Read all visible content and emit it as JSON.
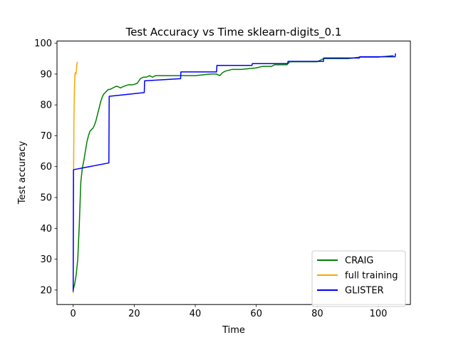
{
  "chart_data": {
    "type": "line",
    "title": "Test Accuracy vs Time sklearn-digits_0.1",
    "xlabel": "Time",
    "ylabel": "Test accuracy",
    "xlim": [
      -5.3,
      110.5
    ],
    "ylim": [
      15.3,
      100.7
    ],
    "xticks": [
      0,
      20,
      40,
      60,
      80,
      100
    ],
    "yticks": [
      20,
      30,
      40,
      50,
      60,
      70,
      80,
      90,
      100
    ],
    "grid": false,
    "legend_position": "lower-right",
    "series": [
      {
        "name": "CRAIG",
        "color": "#008000",
        "x": [
          0,
          0.5,
          1.0,
          1.5,
          2.0,
          2.5,
          3.0,
          3.5,
          4.0,
          4.5,
          5.0,
          5.5,
          6.0,
          6.5,
          7.0,
          7.5,
          8.0,
          8.5,
          9.0,
          9.5,
          10.0,
          10.5,
          11.0,
          11.5,
          12.0,
          13.0,
          14.0,
          14.5,
          15.5,
          16.5,
          18.0,
          19.5,
          21.0,
          22.0,
          23.0,
          24.0,
          25.0,
          26.0,
          27.0,
          28.0,
          30.0,
          35.0,
          40.0,
          45.0,
          47.0,
          48.0,
          49.0,
          50.0,
          52.0,
          55.0,
          60.0,
          62.0,
          65.0,
          66.0,
          70.0,
          71.0,
          75.0,
          80.0,
          82.0,
          90.0,
          94.0,
          100.0,
          105.0
        ],
        "y": [
          20,
          22,
          25,
          30,
          41,
          55,
          59.5,
          62,
          65,
          68,
          70,
          71.5,
          72,
          72.5,
          73.5,
          75,
          77,
          79,
          81,
          82.5,
          83.5,
          84,
          84.5,
          85,
          85,
          85.5,
          86,
          86,
          85.5,
          86,
          86.5,
          86.5,
          87,
          88.5,
          89,
          89,
          89.5,
          89,
          89.5,
          89.5,
          89.5,
          89.5,
          89.5,
          90,
          90,
          89.5,
          90.5,
          91,
          91.5,
          91.5,
          92,
          92.5,
          92.5,
          93,
          93,
          94,
          94,
          94,
          95,
          95,
          95.5,
          95.5,
          96
        ]
      },
      {
        "name": "full training",
        "color": "#ffa500",
        "x": [
          0,
          0.08,
          0.15,
          0.25,
          0.35,
          0.45,
          0.6,
          0.75,
          0.9,
          1.05,
          1.2,
          1.35
        ],
        "y": [
          19,
          45,
          60,
          75,
          82,
          87,
          90,
          90.5,
          90,
          91,
          93,
          94
        ]
      },
      {
        "name": "GLISTER",
        "color": "#0000ff",
        "x": [
          0,
          0.1,
          11.7,
          11.8,
          23.3,
          23.4,
          35.2,
          35.3,
          47.0,
          47.1,
          58.6,
          58.7,
          70.3,
          70.4,
          82.0,
          82.1,
          93.8,
          93.9,
          105.5,
          105.6
        ],
        "y": [
          19.5,
          59,
          61.2,
          82.8,
          84,
          87.8,
          88.5,
          90.7,
          90.7,
          92.8,
          92.8,
          93.4,
          93.4,
          94.1,
          94.1,
          95.2,
          95.2,
          95.6,
          95.6,
          96.7
        ]
      }
    ]
  }
}
